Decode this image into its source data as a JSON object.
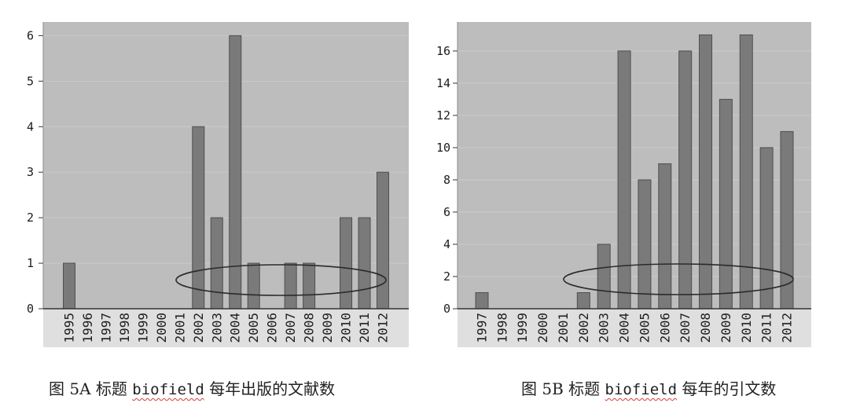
{
  "colors": {
    "plot_background": "#bdbdbd",
    "label_area": "#dfdfdf",
    "bar": "#7a7a7a",
    "bar_edge": "#4f4f4f",
    "gridline": "#cacaca",
    "axis": "#333333",
    "spellcheck_underline": "#d23a3a"
  },
  "captions": [
    {
      "prefix": "图 5A 标题 ",
      "keyword": "biofield",
      "suffix": " 每年出版的文献数"
    },
    {
      "prefix": "图 5B 标题 ",
      "keyword": "biofield",
      "suffix": " 每年的引文数"
    }
  ],
  "chart_data": [
    {
      "type": "bar",
      "categories": [
        "1995",
        "1996",
        "1997",
        "1998",
        "1999",
        "2000",
        "2001",
        "2002",
        "2003",
        "2004",
        "2005",
        "2006",
        "2007",
        "2008",
        "2009",
        "2010",
        "2011",
        "2012"
      ],
      "values": [
        1,
        0,
        0,
        0,
        0,
        0,
        0,
        4,
        2,
        6,
        1,
        0,
        1,
        1,
        0,
        2,
        2,
        3
      ],
      "ylim": [
        0,
        6.3
      ],
      "yticks": [
        0,
        1,
        2,
        3,
        4,
        5,
        6
      ],
      "grid": true
    },
    {
      "type": "bar",
      "categories": [
        "1997",
        "1998",
        "1999",
        "2000",
        "2001",
        "2002",
        "2003",
        "2004",
        "2005",
        "2006",
        "2007",
        "2008",
        "2009",
        "2010",
        "2011",
        "2012"
      ],
      "values": [
        1,
        0,
        0,
        0,
        0,
        1,
        4,
        16,
        8,
        9,
        16,
        17,
        13,
        17,
        10,
        11
      ],
      "ylim": [
        0,
        17.8
      ],
      "yticks": [
        0,
        2,
        4,
        6,
        8,
        10,
        12,
        14,
        16
      ],
      "grid": true
    }
  ]
}
